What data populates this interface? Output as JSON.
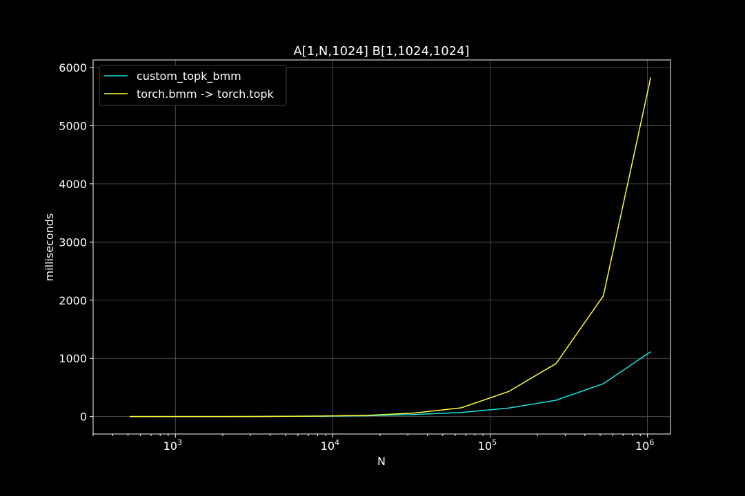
{
  "chart_data": {
    "type": "line",
    "title": "A[1,N,1024] B[1,1024,1024]",
    "xlabel": "N",
    "ylabel": "milliseconds",
    "x_scale": "log",
    "xlim": [
      300,
      1400000
    ],
    "ylim": [
      -300,
      6130
    ],
    "grid": true,
    "legend_position": "top-left",
    "x_ticks": [
      {
        "base": "10",
        "exp": "3",
        "value": 1000
      },
      {
        "base": "10",
        "exp": "4",
        "value": 10000
      },
      {
        "base": "10",
        "exp": "5",
        "value": 100000
      },
      {
        "base": "10",
        "exp": "6",
        "value": 1000000
      }
    ],
    "y_ticks": [
      0,
      1000,
      2000,
      3000,
      4000,
      5000,
      6000
    ],
    "x": [
      512,
      1024,
      2048,
      4096,
      8192,
      16384,
      32768,
      65536,
      131072,
      262144,
      524288,
      1048576
    ],
    "series": [
      {
        "name": "custom_topk_bmm",
        "color": "#17e6e6",
        "values": [
          0,
          0,
          1,
          3,
          7,
          14,
          35,
          70,
          145,
          280,
          565,
          1115
        ]
      },
      {
        "name": "torch.bmm -> torch.topk",
        "color": "#ffff33",
        "values": [
          0,
          0,
          1,
          3,
          8,
          20,
          60,
          150,
          430,
          910,
          2075,
          5830
        ]
      }
    ]
  }
}
